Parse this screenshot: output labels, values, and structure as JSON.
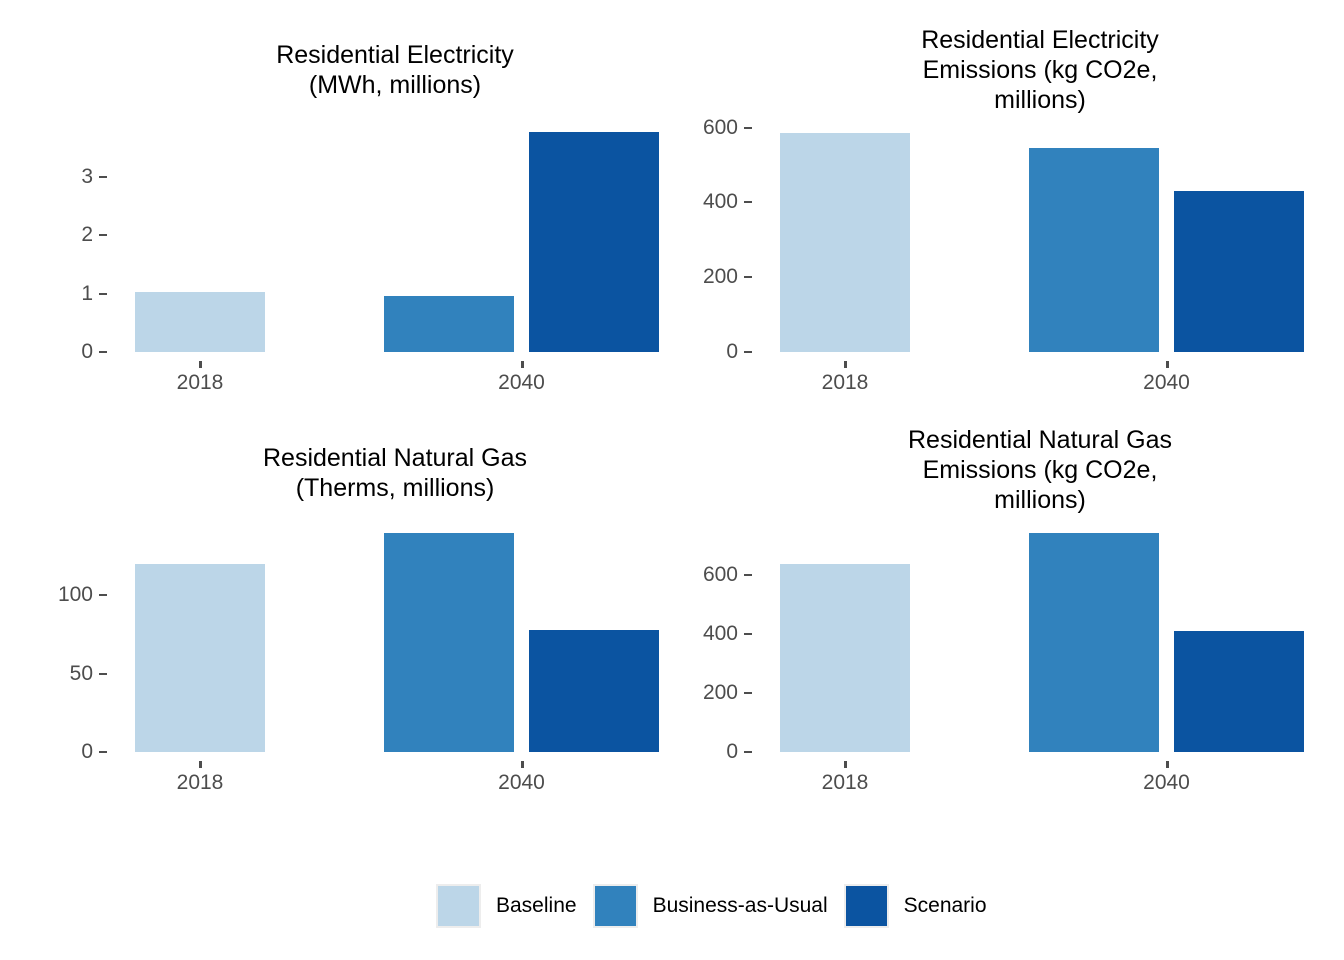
{
  "figure": {
    "background": "#FFFFFF",
    "legend": {
      "position": "bottom",
      "items": [
        {
          "label": "Baseline",
          "color": "#BCD6E8"
        },
        {
          "label": "Business-as-Usual",
          "color": "#3182BD"
        },
        {
          "label": "Scenario",
          "color": "#0B54A1"
        }
      ]
    }
  },
  "chart_data": [
    {
      "type": "bar",
      "title": "Residential Electricity (MWh, millions)",
      "title_lines": [
        "Residential Electricity",
        "(MWh, millions)"
      ],
      "categories": [
        "2018",
        "2040"
      ],
      "series": [
        {
          "name": "Baseline",
          "color": "#BCD6E8",
          "values": [
            1.03,
            null
          ]
        },
        {
          "name": "Business-as-Usual",
          "color": "#3182BD",
          "values": [
            null,
            0.95
          ]
        },
        {
          "name": "Scenario",
          "color": "#0B54A1",
          "values": [
            null,
            3.76
          ]
        }
      ],
      "yticks": [
        0,
        1,
        2,
        3
      ],
      "ylim": [
        0,
        3.9
      ],
      "grid": false
    },
    {
      "type": "bar",
      "title": "Residential Electricity Emissions (kg CO2e, millions)",
      "title_lines": [
        "Residential Electricity",
        "Emissions (kg CO2e,",
        "millions)"
      ],
      "categories": [
        "2018",
        "2040"
      ],
      "series": [
        {
          "name": "Baseline",
          "color": "#BCD6E8",
          "values": [
            585,
            null
          ]
        },
        {
          "name": "Business-as-Usual",
          "color": "#3182BD",
          "values": [
            null,
            545
          ]
        },
        {
          "name": "Scenario",
          "color": "#0B54A1",
          "values": [
            null,
            430
          ]
        }
      ],
      "yticks": [
        0,
        200,
        400,
        600
      ],
      "ylim": [
        0,
        610
      ],
      "grid": false
    },
    {
      "type": "bar",
      "title": "Residential Natural Gas (Therms, millions)",
      "title_lines": [
        "Residential Natural Gas",
        "(Therms, millions)"
      ],
      "categories": [
        "2018",
        "2040"
      ],
      "series": [
        {
          "name": "Baseline",
          "color": "#BCD6E8",
          "values": [
            120,
            null
          ]
        },
        {
          "name": "Business-as-Usual",
          "color": "#3182BD",
          "values": [
            null,
            140
          ]
        },
        {
          "name": "Scenario",
          "color": "#0B54A1",
          "values": [
            null,
            78
          ]
        }
      ],
      "yticks": [
        0,
        50,
        100
      ],
      "ylim": [
        0,
        145.5
      ],
      "grid": false
    },
    {
      "type": "bar",
      "title": "Residential Natural Gas Emissions (kg CO2e, millions)",
      "title_lines": [
        "Residential Natural Gas",
        "Emissions (kg CO2e,",
        "millions)"
      ],
      "categories": [
        "2018",
        "2040"
      ],
      "series": [
        {
          "name": "Baseline",
          "color": "#BCD6E8",
          "values": [
            640,
            null
          ]
        },
        {
          "name": "Business-as-Usual",
          "color": "#3182BD",
          "values": [
            null,
            745
          ]
        },
        {
          "name": "Scenario",
          "color": "#0B54A1",
          "values": [
            null,
            410
          ]
        }
      ],
      "yticks": [
        0,
        200,
        400,
        600
      ],
      "ylim": [
        0,
        775
      ],
      "grid": false
    }
  ]
}
